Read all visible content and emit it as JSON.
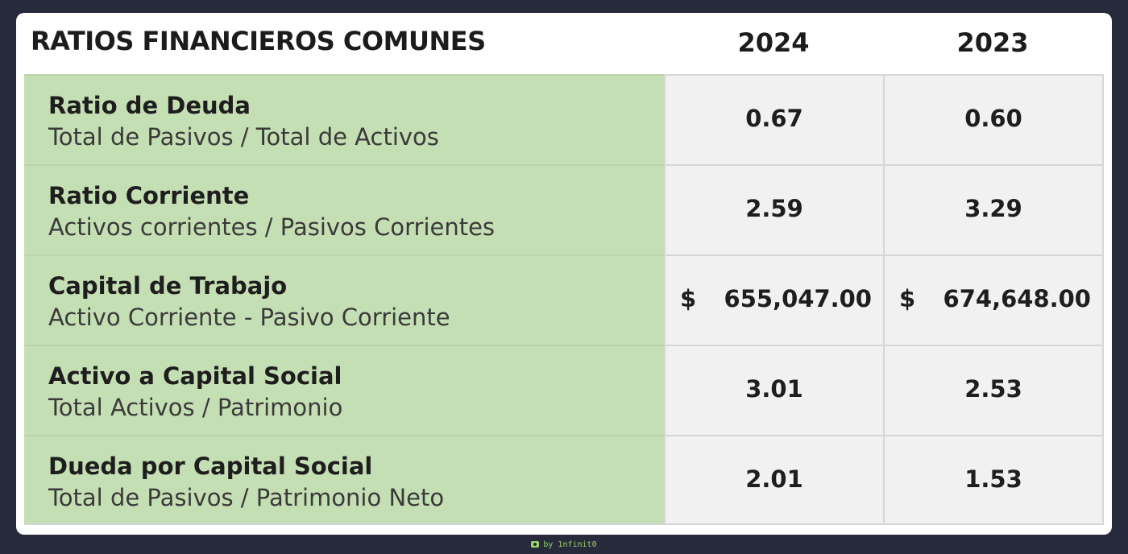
{
  "header": {
    "title": "RATIOS FINANCIEROS COMUNES",
    "years": [
      "2024",
      "2023"
    ]
  },
  "rows": [
    {
      "name": "Ratio de Deuda",
      "formula": "Total de Pasivos / Total de Activos",
      "v2024": "0.67",
      "v2023": "0.60"
    },
    {
      "name": "Ratio Corriente",
      "formula": "Activos corrientes / Pasivos Corrientes",
      "v2024": "2.59",
      "v2023": "3.29"
    },
    {
      "name": "Capital de Trabajo",
      "formula": "Activo Corriente - Pasivo Corriente",
      "currency": "$",
      "v2024": "655,047.00",
      "v2023": "674,648.00"
    },
    {
      "name": "Activo a Capital Social",
      "formula": "Total Activos / Patrimonio",
      "v2024": "3.01",
      "v2023": "2.53"
    },
    {
      "name": "Dueda por Capital Social",
      "formula": "Total de Pasivos / Patrimonio Neto",
      "v2024": "2.01",
      "v2023": "1.53"
    }
  ],
  "footer": {
    "text": "by 1nfinit0",
    "icon": "camera-icon"
  },
  "colors": {
    "background": "#262a3a",
    "label_fill": "#c5dfb4",
    "value_fill": "#f1f1f1",
    "footer_accent": "#9bd36a"
  }
}
